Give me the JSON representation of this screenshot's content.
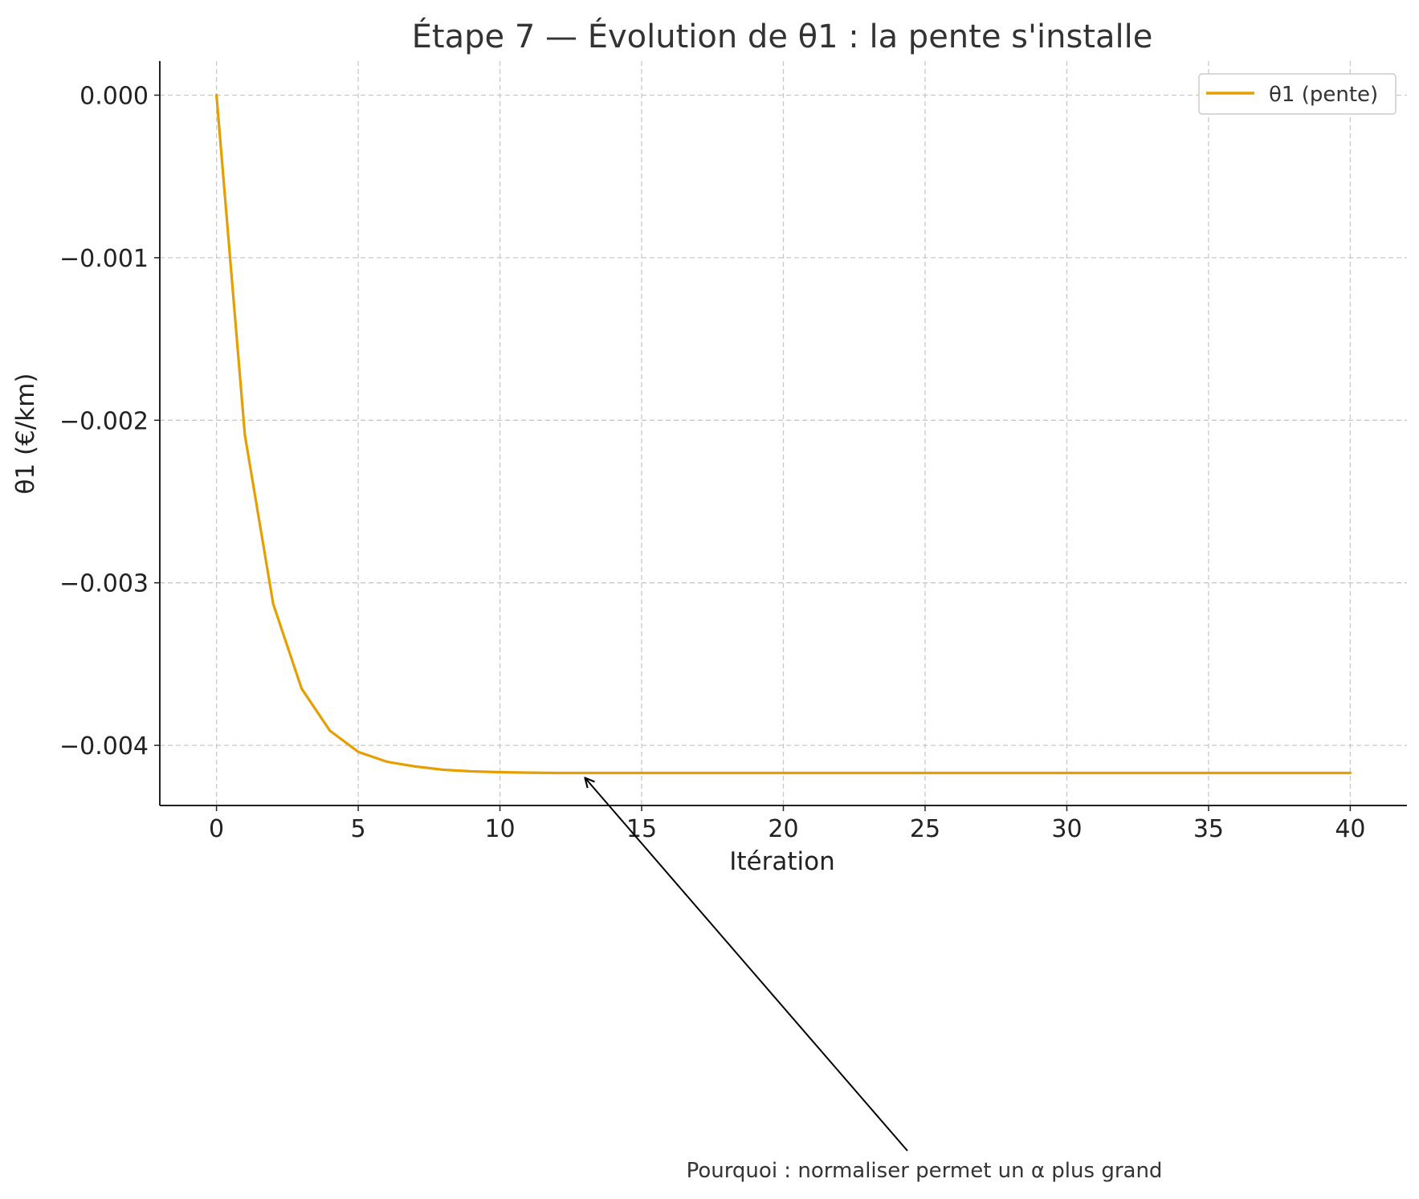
{
  "chart_data": {
    "type": "line",
    "title": "Étape 7 — Évolution de θ1 : la pente s'installe",
    "xlabel": "Itération",
    "ylabel": "θ1 (€/km)",
    "xlim": [
      -2,
      42
    ],
    "ylim": [
      -0.00437,
      0.00021
    ],
    "xticks": [
      0,
      5,
      10,
      15,
      20,
      25,
      30,
      35,
      40
    ],
    "xtick_labels": [
      "0",
      "5",
      "10",
      "15",
      "20",
      "25",
      "30",
      "35",
      "40"
    ],
    "yticks": [
      0,
      -0.001,
      -0.002,
      -0.003,
      -0.004
    ],
    "ytick_labels": [
      "0.000",
      "−0.001",
      "−0.002",
      "−0.003",
      "−0.004"
    ],
    "grid": true,
    "legend_position": "upper right",
    "series": [
      {
        "name": "θ1 (pente)",
        "color": "#E69F00",
        "x": [
          0,
          1,
          2,
          3,
          4,
          5,
          6,
          7,
          8,
          9,
          10,
          11,
          12,
          13,
          14,
          15,
          16,
          17,
          18,
          19,
          20,
          21,
          22,
          23,
          24,
          25,
          26,
          27,
          28,
          29,
          30,
          31,
          32,
          33,
          34,
          35,
          36,
          37,
          38,
          39,
          40
        ],
        "values": [
          0,
          -0.00209,
          -0.00313,
          -0.00365,
          -0.00391,
          -0.00404,
          -0.0041,
          -0.00413,
          -0.00415,
          -0.00416,
          -0.004165,
          -0.004168,
          -0.00417,
          -0.00417,
          -0.00417,
          -0.00417,
          -0.00417,
          -0.00417,
          -0.00417,
          -0.00417,
          -0.00417,
          -0.00417,
          -0.00417,
          -0.00417,
          -0.00417,
          -0.00417,
          -0.00417,
          -0.00417,
          -0.00417,
          -0.00417,
          -0.00417,
          -0.00417,
          -0.00417,
          -0.00417,
          -0.00417,
          -0.00417,
          -0.00417,
          -0.00417,
          -0.00417,
          -0.00417,
          -0.00417
        ]
      }
    ],
    "annotations": [
      {
        "text": "Pourquoi : normaliser permet un α plus grand",
        "arrow_target": {
          "x": 13,
          "y": -0.00417
        }
      }
    ]
  }
}
